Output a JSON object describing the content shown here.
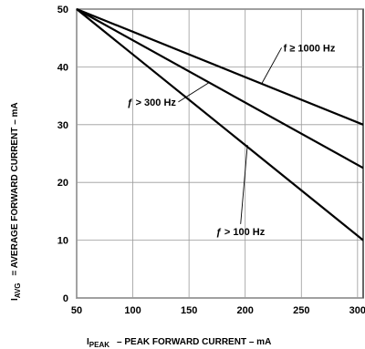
{
  "chart_data": {
    "type": "line",
    "x_ticks": [
      "50",
      "100",
      "150",
      "200",
      "250",
      "300"
    ],
    "y_ticks": [
      "0",
      "10",
      "20",
      "30",
      "40",
      "50"
    ],
    "xlim": [
      50,
      305
    ],
    "ylim": [
      0,
      50
    ],
    "grid": true,
    "xlabel": {
      "symbol": "I",
      "subscript": "PEAK",
      "text": "– PEAK FORWARD CURRENT – mA"
    },
    "ylabel": {
      "symbol": "I",
      "subscript": "AVG",
      "text": "= AVERAGE FORWARD CURRENT – mA"
    },
    "series": [
      {
        "name": "f ≥ 1000 Hz",
        "x": [
          50,
          305
        ],
        "y": [
          50,
          30
        ]
      },
      {
        "name": "ƒ > 300 Hz",
        "x": [
          50,
          305
        ],
        "y": [
          50,
          22.5
        ]
      },
      {
        "name": "ƒ > 100 Hz",
        "x": [
          50,
          305
        ],
        "y": [
          50,
          10
        ]
      }
    ],
    "annotations": [
      {
        "text": "f ≥ 1000 Hz",
        "series": 0,
        "x": 234,
        "y": 42.7,
        "point_x": 215,
        "point_y": 37.2
      },
      {
        "text": "ƒ > 300 Hz",
        "series": 1,
        "x": 95,
        "y": 33.3,
        "point_x": 168,
        "point_y": 37.3
      },
      {
        "text": "ƒ > 100 Hz",
        "series": 2,
        "x": 174,
        "y": 10.9,
        "point_x": 202,
        "point_y": 26.5
      }
    ]
  }
}
